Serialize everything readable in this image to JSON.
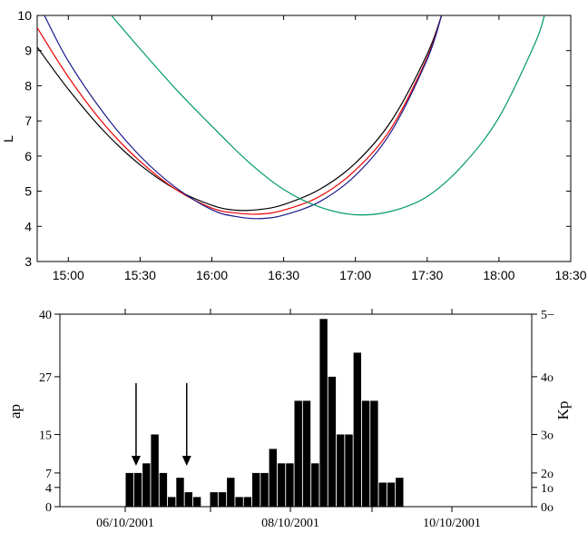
{
  "chart_data": [
    {
      "type": "line",
      "ylabel": "L",
      "xlabel": "",
      "ylim": [
        3,
        10
      ],
      "xlim": [
        "14:47",
        "18:30"
      ],
      "x_ticks": [
        "15:00",
        "15:30",
        "16:00",
        "16:30",
        "17:00",
        "17:30",
        "18:00",
        "18:30"
      ],
      "y_ticks": [
        "3",
        "4",
        "5",
        "6",
        "7",
        "8",
        "9",
        "10"
      ],
      "series": [
        {
          "color": "#000000",
          "x": [
            "14:47",
            "15:00",
            "15:15",
            "15:30",
            "15:45",
            "16:00",
            "16:10",
            "16:20",
            "16:30",
            "16:45",
            "17:00",
            "17:15",
            "17:30",
            "17:36"
          ],
          "y": [
            9.1,
            7.9,
            6.7,
            5.75,
            5.05,
            4.6,
            4.46,
            4.48,
            4.62,
            5.05,
            5.8,
            7.0,
            8.9,
            10.0
          ]
        },
        {
          "color": "#ee0000",
          "x": [
            "14:47",
            "15:00",
            "15:15",
            "15:30",
            "15:45",
            "16:00",
            "16:10",
            "16:20",
            "16:30",
            "16:45",
            "17:00",
            "17:15",
            "17:30",
            "17:36"
          ],
          "y": [
            9.65,
            8.25,
            6.9,
            5.85,
            5.05,
            4.52,
            4.38,
            4.35,
            4.46,
            4.85,
            5.6,
            6.8,
            8.8,
            10.0
          ]
        },
        {
          "color": "#1a1a8c",
          "x": [
            "14:50",
            "15:00",
            "15:15",
            "15:30",
            "15:45",
            "16:00",
            "16:10",
            "16:20",
            "16:30",
            "16:45",
            "17:00",
            "17:15",
            "17:30",
            "17:36"
          ],
          "y": [
            10.0,
            8.7,
            7.2,
            6.0,
            5.1,
            4.47,
            4.28,
            4.22,
            4.32,
            4.7,
            5.45,
            6.7,
            8.75,
            10.0
          ]
        },
        {
          "color": "#009966",
          "x": [
            "15:18",
            "15:30",
            "15:45",
            "16:00",
            "16:15",
            "16:30",
            "16:45",
            "17:00",
            "17:15",
            "17:30",
            "17:45",
            "18:00",
            "18:15",
            "18:19"
          ],
          "y": [
            10.0,
            9.05,
            7.9,
            6.85,
            5.85,
            5.05,
            4.55,
            4.33,
            4.43,
            4.85,
            5.75,
            7.1,
            9.2,
            10.0
          ]
        }
      ]
    },
    {
      "type": "bar",
      "ylabel": "ap",
      "y2label": "Kp",
      "ylim": [
        0,
        40
      ],
      "y_ticks": [
        "0",
        "4",
        "7",
        "15",
        "27",
        "40"
      ],
      "y2_ticks": [
        "0o",
        "1o",
        "2o",
        "3o",
        "4o",
        "5−"
      ],
      "x_ticks": [
        "06/10/2001",
        "08/10/2001",
        "10/10/2001"
      ],
      "bar_values": [
        7,
        7,
        9,
        15,
        7,
        2,
        6,
        3,
        2,
        0,
        3,
        3,
        6,
        2,
        2,
        7,
        7,
        12,
        9,
        9,
        22,
        22,
        9,
        39,
        27,
        15,
        15,
        32,
        22,
        22,
        5,
        5,
        6
      ],
      "arrow_values": [
        1.5,
        7.5
      ],
      "bar_color": "#000000"
    }
  ]
}
